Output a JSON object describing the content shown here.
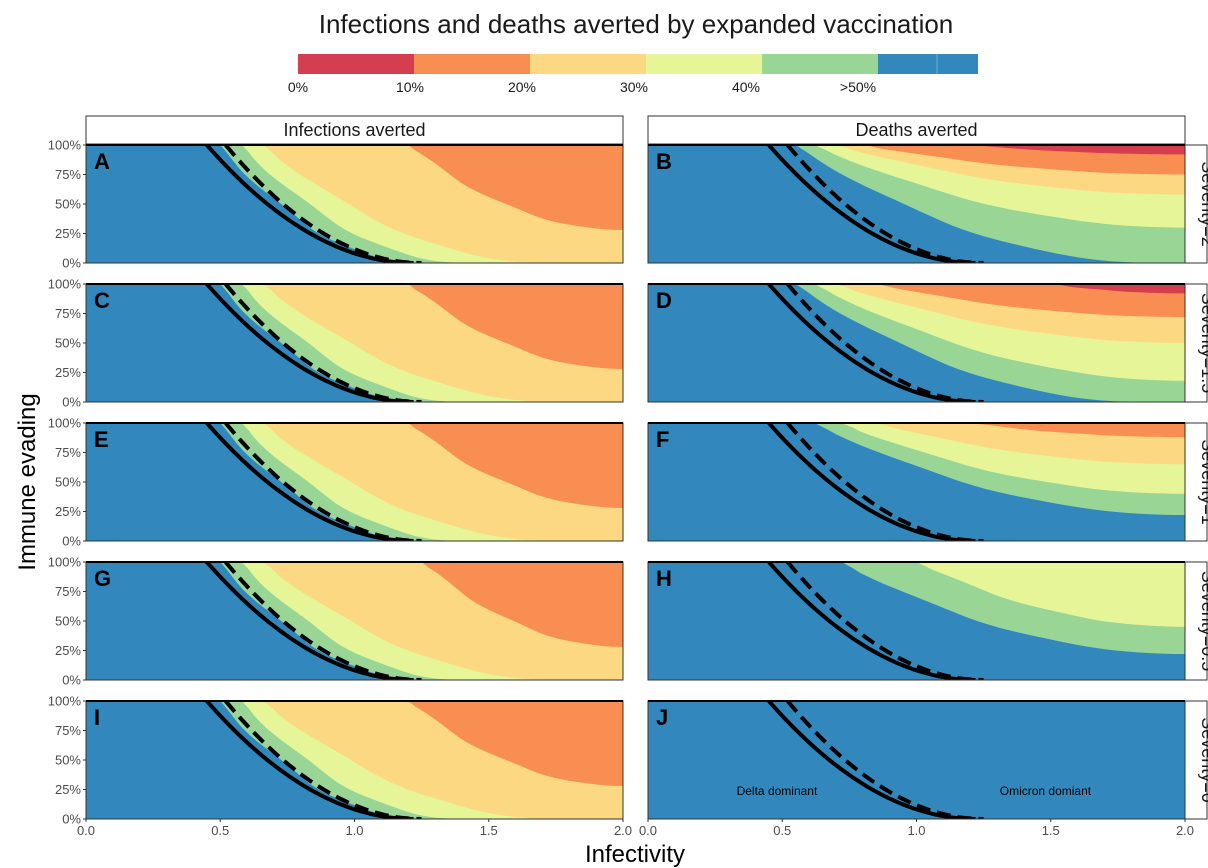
{
  "chart_data": {
    "type": "heatmap",
    "title": "Infections and deaths averted by expanded vaccination",
    "xlabel": "Infectivity",
    "ylabel": "Immune evading",
    "xlim": [
      0.0,
      2.0
    ],
    "ylim": [
      0,
      100
    ],
    "x_ticks": [
      "0.0",
      "0.5",
      "1.0",
      "1.5",
      "2.0"
    ],
    "y_ticks": [
      "0%",
      "25%",
      "50%",
      "75%",
      "100%"
    ],
    "columns": [
      "Infections averted",
      "Deaths averted"
    ],
    "rows": [
      "Severity=2",
      "Severity=1.5",
      "Severity=1",
      "Severity=0.5",
      "Severity=0"
    ],
    "legend": {
      "labels": [
        "0%",
        "10%",
        "20%",
        "30%",
        "40%",
        ">50%"
      ],
      "colors": [
        "#d53e4f",
        "#f98e52",
        "#fdd883",
        "#e6f598",
        "#99d594",
        "#3288bd"
      ]
    },
    "annotations": {
      "left": "Delta dominant",
      "right": "Omicron domiant"
    },
    "boundary_curves": {
      "solid": {
        "x": [
          0.45,
          1.22
        ],
        "y": [
          100,
          0
        ]
      },
      "dashed": {
        "x": [
          0.52,
          1.25
        ],
        "y": [
          100,
          0
        ]
      }
    },
    "panels": [
      {
        "letter": "A",
        "col": 0,
        "row": 0,
        "boundaries": [
          [
            0.5,
            1.25,
            100,
            0
          ],
          [
            0.58,
            1.42,
            100,
            0
          ],
          [
            0.66,
            1.72,
            100,
            0
          ],
          [
            1.2,
            2.0,
            100,
            28
          ]
        ]
      },
      {
        "letter": "B",
        "col": 1,
        "row": 0,
        "boundaries": [
          [
            0.55,
            1.9,
            100,
            0
          ],
          [
            0.62,
            2.0,
            100,
            30
          ],
          [
            0.7,
            2.0,
            100,
            58
          ],
          [
            0.8,
            2.0,
            100,
            75
          ],
          [
            1.2,
            2.0,
            100,
            92
          ]
        ]
      },
      {
        "letter": "C",
        "col": 0,
        "row": 1,
        "boundaries": [
          [
            0.5,
            1.25,
            100,
            0
          ],
          [
            0.58,
            1.4,
            100,
            0
          ],
          [
            0.66,
            1.75,
            100,
            0
          ],
          [
            1.2,
            2.0,
            100,
            28
          ]
        ]
      },
      {
        "letter": "D",
        "col": 1,
        "row": 1,
        "boundaries": [
          [
            0.55,
            1.85,
            100,
            0
          ],
          [
            0.62,
            2.0,
            100,
            18
          ],
          [
            0.7,
            2.0,
            100,
            50
          ],
          [
            0.85,
            2.0,
            100,
            72
          ],
          [
            1.5,
            2.0,
            100,
            92
          ]
        ]
      },
      {
        "letter": "E",
        "col": 0,
        "row": 2,
        "boundaries": [
          [
            0.5,
            1.25,
            100,
            0
          ],
          [
            0.58,
            1.4,
            100,
            0
          ],
          [
            0.66,
            1.75,
            100,
            0
          ],
          [
            1.2,
            2.0,
            100,
            28
          ]
        ]
      },
      {
        "letter": "F",
        "col": 1,
        "row": 2,
        "boundaries": [
          [
            0.62,
            2.0,
            100,
            22
          ],
          [
            0.72,
            2.0,
            100,
            40
          ],
          [
            0.85,
            2.0,
            100,
            65
          ],
          [
            1.2,
            2.0,
            100,
            88
          ]
        ]
      },
      {
        "letter": "G",
        "col": 0,
        "row": 3,
        "boundaries": [
          [
            0.5,
            1.25,
            100,
            0
          ],
          [
            0.58,
            1.4,
            100,
            0
          ],
          [
            0.66,
            1.75,
            100,
            0
          ],
          [
            1.25,
            2.0,
            100,
            28
          ]
        ]
      },
      {
        "letter": "H",
        "col": 1,
        "row": 3,
        "boundaries": [
          [
            0.72,
            2.0,
            100,
            22
          ],
          [
            1.0,
            2.0,
            100,
            45
          ]
        ]
      },
      {
        "letter": "I",
        "col": 0,
        "row": 4,
        "boundaries": [
          [
            0.5,
            1.25,
            100,
            0
          ],
          [
            0.58,
            1.4,
            100,
            0
          ],
          [
            0.66,
            1.75,
            100,
            0
          ],
          [
            1.2,
            2.0,
            100,
            28
          ]
        ]
      },
      {
        "letter": "J",
        "col": 1,
        "row": 4,
        "boundaries": [],
        "annotated": true
      }
    ]
  }
}
